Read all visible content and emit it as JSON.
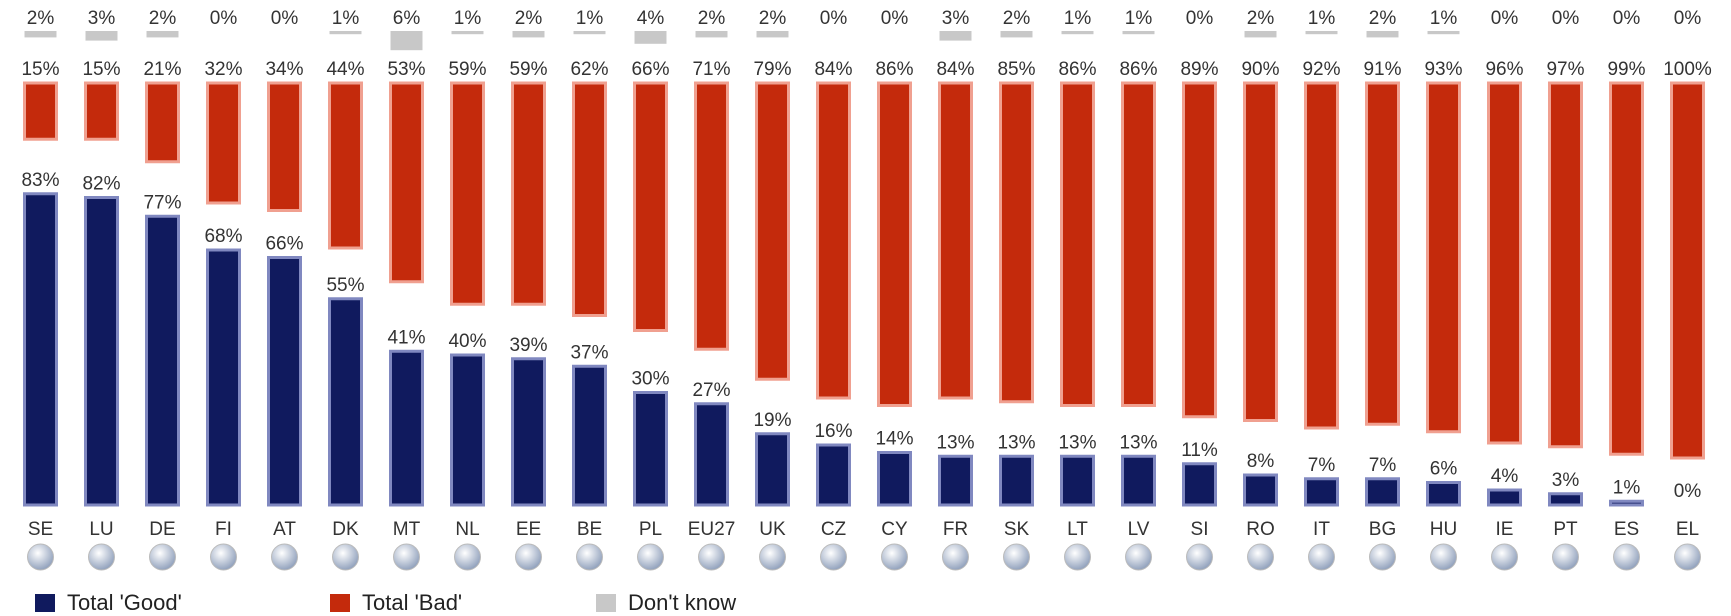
{
  "chart_data": {
    "type": "bar",
    "categories": [
      "SE",
      "LU",
      "DE",
      "FI",
      "AT",
      "DK",
      "MT",
      "NL",
      "EE",
      "BE",
      "PL",
      "EU27",
      "UK",
      "CZ",
      "CY",
      "FR",
      "SK",
      "LT",
      "LV",
      "SI",
      "RO",
      "IT",
      "BG",
      "HU",
      "IE",
      "PT",
      "ES",
      "EL"
    ],
    "series": [
      {
        "name": "Total 'Good'",
        "color": "#101a5e",
        "values": [
          83,
          82,
          77,
          68,
          66,
          55,
          41,
          40,
          39,
          37,
          30,
          27,
          19,
          16,
          14,
          13,
          13,
          13,
          13,
          11,
          8,
          7,
          7,
          6,
          4,
          3,
          1,
          0
        ],
        "value_labels": [
          "83%",
          "82%",
          "77%",
          "68%",
          "66%",
          "55%",
          "41%",
          "40%",
          "39%",
          "37%",
          "30%",
          "27%",
          "19%",
          "16%",
          "14%",
          "13%",
          "13%",
          "13%",
          "13%",
          "11%",
          "8%",
          "7%",
          "7%",
          "6%",
          "4%",
          "3%",
          "1%",
          "0%"
        ]
      },
      {
        "name": "Total 'Bad'",
        "color": "#c42a0c",
        "values": [
          15,
          15,
          21,
          32,
          34,
          44,
          53,
          59,
          59,
          62,
          66,
          71,
          79,
          84,
          86,
          84,
          85,
          86,
          86,
          89,
          90,
          92,
          91,
          93,
          96,
          97,
          99,
          100
        ],
        "value_labels": [
          "15%",
          "15%",
          "21%",
          "32%",
          "34%",
          "44%",
          "53%",
          "59%",
          "59%",
          "62%",
          "66%",
          "71%",
          "79%",
          "84%",
          "86%",
          "84%",
          "85%",
          "86%",
          "86%",
          "89%",
          "90%",
          "92%",
          "91%",
          "93%",
          "96%",
          "97%",
          "99%",
          "100%"
        ]
      },
      {
        "name": "Don't know",
        "color": "#c8c8c8",
        "values": [
          2,
          3,
          2,
          0,
          0,
          1,
          6,
          1,
          2,
          1,
          4,
          2,
          2,
          0,
          0,
          3,
          2,
          1,
          1,
          0,
          2,
          1,
          2,
          1,
          0,
          0,
          0,
          0
        ],
        "value_labels": [
          "2%",
          "3%",
          "2%",
          "0%",
          "0%",
          "1%",
          "6%",
          "1%",
          "2%",
          "1%",
          "4%",
          "2%",
          "2%",
          "0%",
          "0%",
          "3%",
          "2%",
          "1%",
          "1%",
          "0%",
          "2%",
          "1%",
          "2%",
          "1%",
          "0%",
          "0%",
          "0%",
          "0%"
        ]
      }
    ]
  }
}
